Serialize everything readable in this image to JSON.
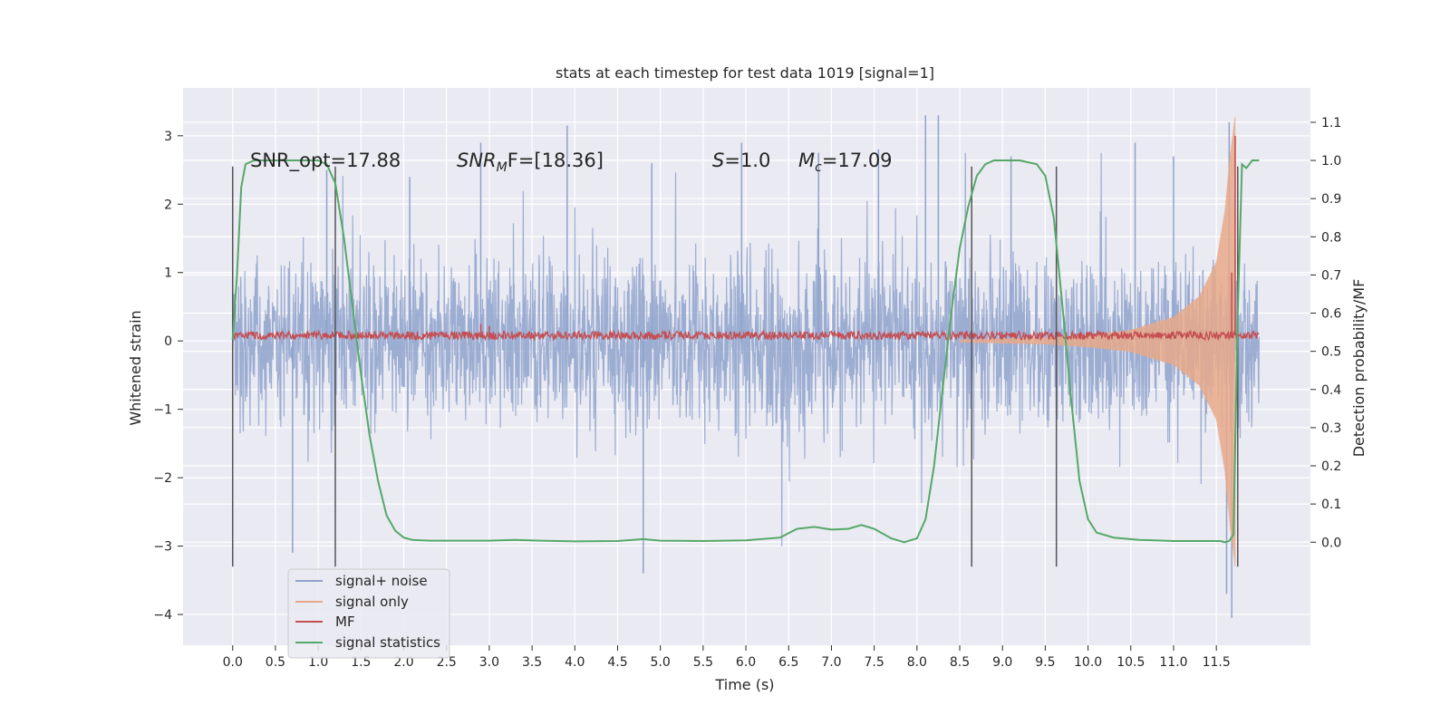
{
  "chart_data": {
    "type": "line",
    "title": "stats at each timestep for test data 1019 [signal=1]",
    "xlabel": "Time (s)",
    "ylabel": "Whitened strain",
    "y2label": "Detection probability/MF",
    "xlim": [
      -0.58,
      12.6
    ],
    "ylim": [
      -4.45,
      3.7
    ],
    "y2lim": [
      -0.27,
      1.19
    ],
    "xticks": [
      0.0,
      0.5,
      1.0,
      1.5,
      2.0,
      2.5,
      3.0,
      3.5,
      4.0,
      4.5,
      5.0,
      5.5,
      6.0,
      6.5,
      7.0,
      7.5,
      8.0,
      8.5,
      9.0,
      9.5,
      10.0,
      10.5,
      11.0,
      11.5
    ],
    "xticklabels": [
      "0.0",
      "0.5",
      "1.0",
      "1.5",
      "2.0",
      "2.5",
      "3.0",
      "3.5",
      "4.0",
      "4.5",
      "5.0",
      "5.5",
      "6.0",
      "6.5",
      "7.0",
      "7.5",
      "8.0",
      "8.5",
      "9.0",
      "9.5",
      "10.0",
      "10.5",
      "11.0",
      "11.5"
    ],
    "yticks": [
      -4,
      -3,
      -2,
      -1,
      0,
      1,
      2,
      3
    ],
    "yticklabels": [
      "−4",
      "−3",
      "−2",
      "−1",
      "0",
      "1",
      "2",
      "3"
    ],
    "y2ticks": [
      0.0,
      0.1,
      0.2,
      0.3,
      0.4,
      0.5,
      0.6,
      0.7,
      0.8,
      0.9,
      1.0,
      1.1
    ],
    "y2ticklabels": [
      "0.0",
      "0.1",
      "0.2",
      "0.3",
      "0.4",
      "0.5",
      "0.6",
      "0.7",
      "0.8",
      "0.9",
      "1.0",
      "1.1"
    ],
    "grid": true,
    "legend_position": "lower-left",
    "noise": {
      "x_range": [
        0.0,
        12.0
      ],
      "typical_amplitude": 1.4,
      "peaks": [
        [
          0.7,
          -3.1
        ],
        [
          1.1,
          2.5
        ],
        [
          2.07,
          2.4
        ],
        [
          2.9,
          2.9
        ],
        [
          3.91,
          3.15
        ],
        [
          4.8,
          -3.4
        ],
        [
          4.9,
          2.6
        ],
        [
          5.95,
          2.9
        ],
        [
          6.85,
          2.75
        ],
        [
          7.55,
          2.8
        ],
        [
          8.1,
          3.3
        ],
        [
          8.25,
          3.3
        ],
        [
          9.1,
          2.7
        ],
        [
          10.55,
          2.9
        ],
        [
          11.0,
          2.7
        ],
        [
          11.62,
          -3.7
        ],
        [
          11.68,
          -4.05
        ],
        [
          11.65,
          3.2
        ]
      ]
    },
    "signal_only": {
      "start": 8.5,
      "merger": 11.72,
      "envelope": [
        [
          8.5,
          0.02
        ],
        [
          9.5,
          0.05
        ],
        [
          10.0,
          0.09
        ],
        [
          10.5,
          0.16
        ],
        [
          11.0,
          0.35
        ],
        [
          11.3,
          0.65
        ],
        [
          11.5,
          1.15
        ],
        [
          11.6,
          1.9
        ],
        [
          11.66,
          2.7
        ],
        [
          11.72,
          3.3
        ]
      ]
    },
    "mf": {
      "x_range": [
        0.0,
        12.0
      ],
      "level": 0.08,
      "band": 0.06,
      "spikes": [
        [
          2.9,
          0.25
        ],
        [
          3.0,
          0.22
        ],
        [
          11.68,
          1.0
        ],
        [
          11.72,
          3.0
        ]
      ]
    },
    "markers": [
      0.0,
      1.2,
      8.64,
      9.63,
      11.75
    ],
    "marker_span": [
      -3.3,
      2.55
    ],
    "series": [
      {
        "name": "signal statistics",
        "x": [
          0.0,
          0.05,
          0.1,
          0.15,
          0.25,
          0.5,
          0.8,
          1.0,
          1.1,
          1.2,
          1.3,
          1.4,
          1.5,
          1.6,
          1.7,
          1.8,
          1.9,
          2.0,
          2.1,
          2.3,
          2.6,
          3.0,
          3.3,
          3.6,
          4.0,
          4.5,
          4.8,
          5.0,
          5.5,
          6.0,
          6.4,
          6.6,
          6.8,
          7.0,
          7.2,
          7.35,
          7.5,
          7.7,
          7.85,
          8.0,
          8.1,
          8.2,
          8.3,
          8.4,
          8.5,
          8.6,
          8.7,
          8.8,
          8.9,
          9.0,
          9.2,
          9.4,
          9.5,
          9.6,
          9.7,
          9.8,
          9.9,
          10.0,
          10.1,
          10.3,
          10.6,
          11.0,
          11.4,
          11.55,
          11.6,
          11.65,
          11.7,
          11.75,
          11.8,
          11.85,
          11.92,
          12.0
        ],
        "y": [
          0.53,
          0.7,
          0.93,
          0.99,
          1.0,
          1.0,
          1.0,
          1.0,
          0.99,
          0.94,
          0.8,
          0.62,
          0.44,
          0.28,
          0.16,
          0.07,
          0.03,
          0.012,
          0.006,
          0.004,
          0.004,
          0.004,
          0.006,
          0.004,
          0.002,
          0.003,
          0.008,
          0.004,
          0.003,
          0.005,
          0.012,
          0.035,
          0.04,
          0.033,
          0.035,
          0.045,
          0.035,
          0.01,
          0.0,
          0.01,
          0.06,
          0.2,
          0.4,
          0.6,
          0.77,
          0.88,
          0.96,
          0.99,
          1.0,
          1.0,
          1.0,
          0.99,
          0.96,
          0.85,
          0.62,
          0.38,
          0.16,
          0.06,
          0.025,
          0.012,
          0.006,
          0.003,
          0.003,
          0.003,
          0.0,
          0.003,
          0.02,
          0.6,
          0.99,
          0.98,
          1.0,
          1.0
        ]
      }
    ],
    "legend": [
      {
        "label": "signal+ noise",
        "color": "#8ea2cc"
      },
      {
        "label": "signal only",
        "color": "#e8a98a"
      },
      {
        "label": "MF",
        "color": "#c44e52"
      },
      {
        "label": "signal statistics",
        "color": "#55a868"
      }
    ],
    "annotations": {
      "snr_opt": "SNR_opt=17.88",
      "snr_mf_italic": "SNR",
      "snr_mf_sub": "M",
      "snr_mf_rest": "F=[18.36]",
      "s_italic": "S",
      "s_rest": "=1.0",
      "mc_italic": "M",
      "mc_sub": "c",
      "mc_rest": "=17.09"
    },
    "colors": {
      "axes_bg": "#eaeaf2",
      "grid": "#ffffff",
      "noise": "#8ea2cc",
      "signal": "#e8a98a",
      "mf": "#c44e52",
      "stat": "#55a868",
      "marker": "#555555"
    }
  }
}
